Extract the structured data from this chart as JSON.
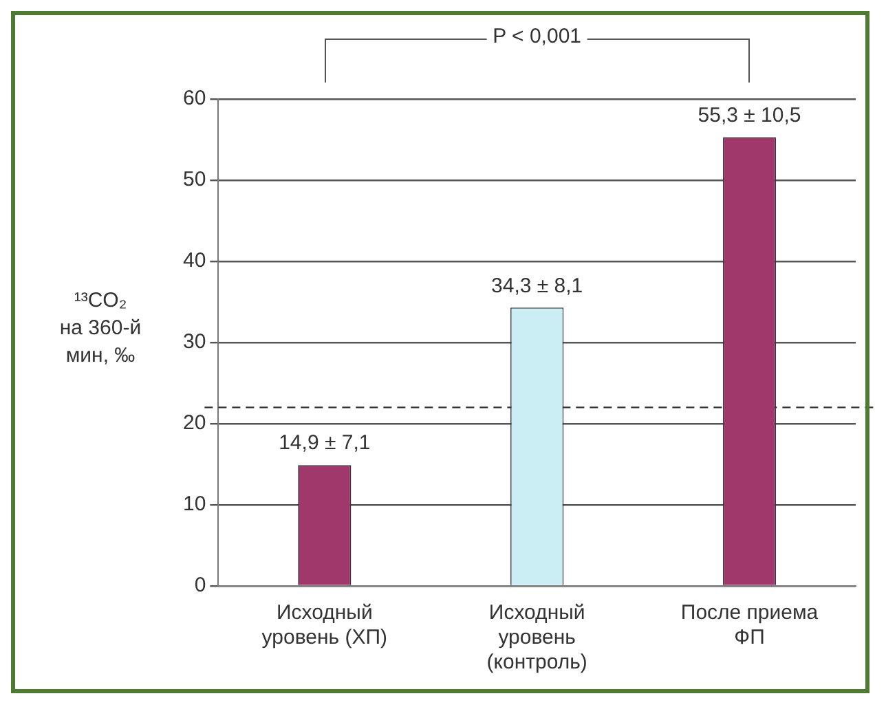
{
  "chart_data": {
    "type": "bar",
    "ylabel": "¹³CO₂\nна 360-й\nмин, ‰",
    "categories": [
      "Исходный\nуровень (ХП)",
      "Исходный\nуровень\n(контроль)",
      "После приема\nФП"
    ],
    "values": [
      14.9,
      34.3,
      55.3
    ],
    "colors": [
      "#a0386c",
      "#cbeef4",
      "#a0386c"
    ],
    "value_labels": [
      "14,9 ± 7,1",
      "34,3 ± 8,1",
      "55,3 ± 10,5"
    ],
    "ylim": [
      0,
      60
    ],
    "yticks": [
      0,
      10,
      20,
      30,
      40,
      50,
      60
    ],
    "grid": "y",
    "ref_lines": [
      {
        "axis": "y",
        "value": 22,
        "line_style": "dashed",
        "color": "#333333"
      }
    ],
    "annotations": [
      "P < 0,001"
    ],
    "legend": false
  }
}
